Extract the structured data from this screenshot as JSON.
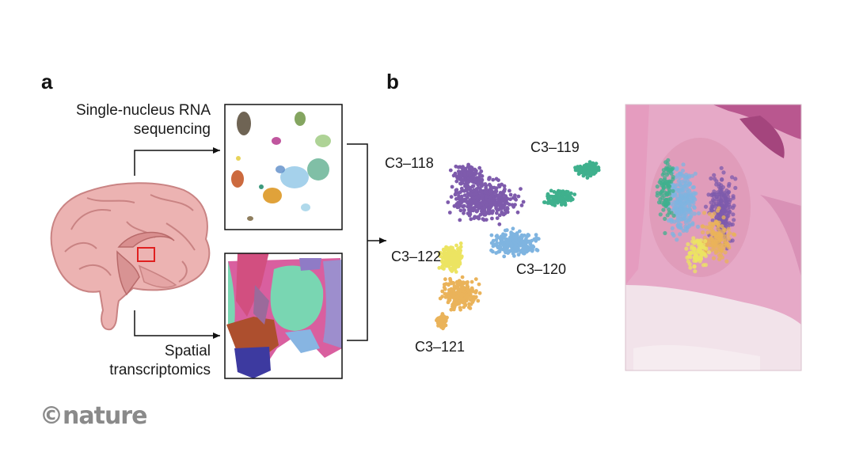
{
  "panel_a": {
    "letter": "a",
    "label_top_line1": "Single-nucleus RNA",
    "label_top_line2": "sequencing",
    "label_bottom_line1": "Spatial",
    "label_bottom_line2": "transcriptomics"
  },
  "panel_b": {
    "letter": "b",
    "clusters": [
      {
        "name": "C3–118",
        "color": "#7e5bac"
      },
      {
        "name": "C3–119",
        "color": "#3fb08d"
      },
      {
        "name": "C3–120",
        "color": "#7fb4e0"
      },
      {
        "name": "C3–121",
        "color": "#eab35a"
      },
      {
        "name": "C3–122",
        "color": "#ece462"
      }
    ]
  },
  "brand": "©nature",
  "colors": {
    "brain": "#ecb3b2",
    "brain_dark": "#c98383",
    "highlight_box": "#e02020",
    "tissue": "#e8a0c0"
  }
}
